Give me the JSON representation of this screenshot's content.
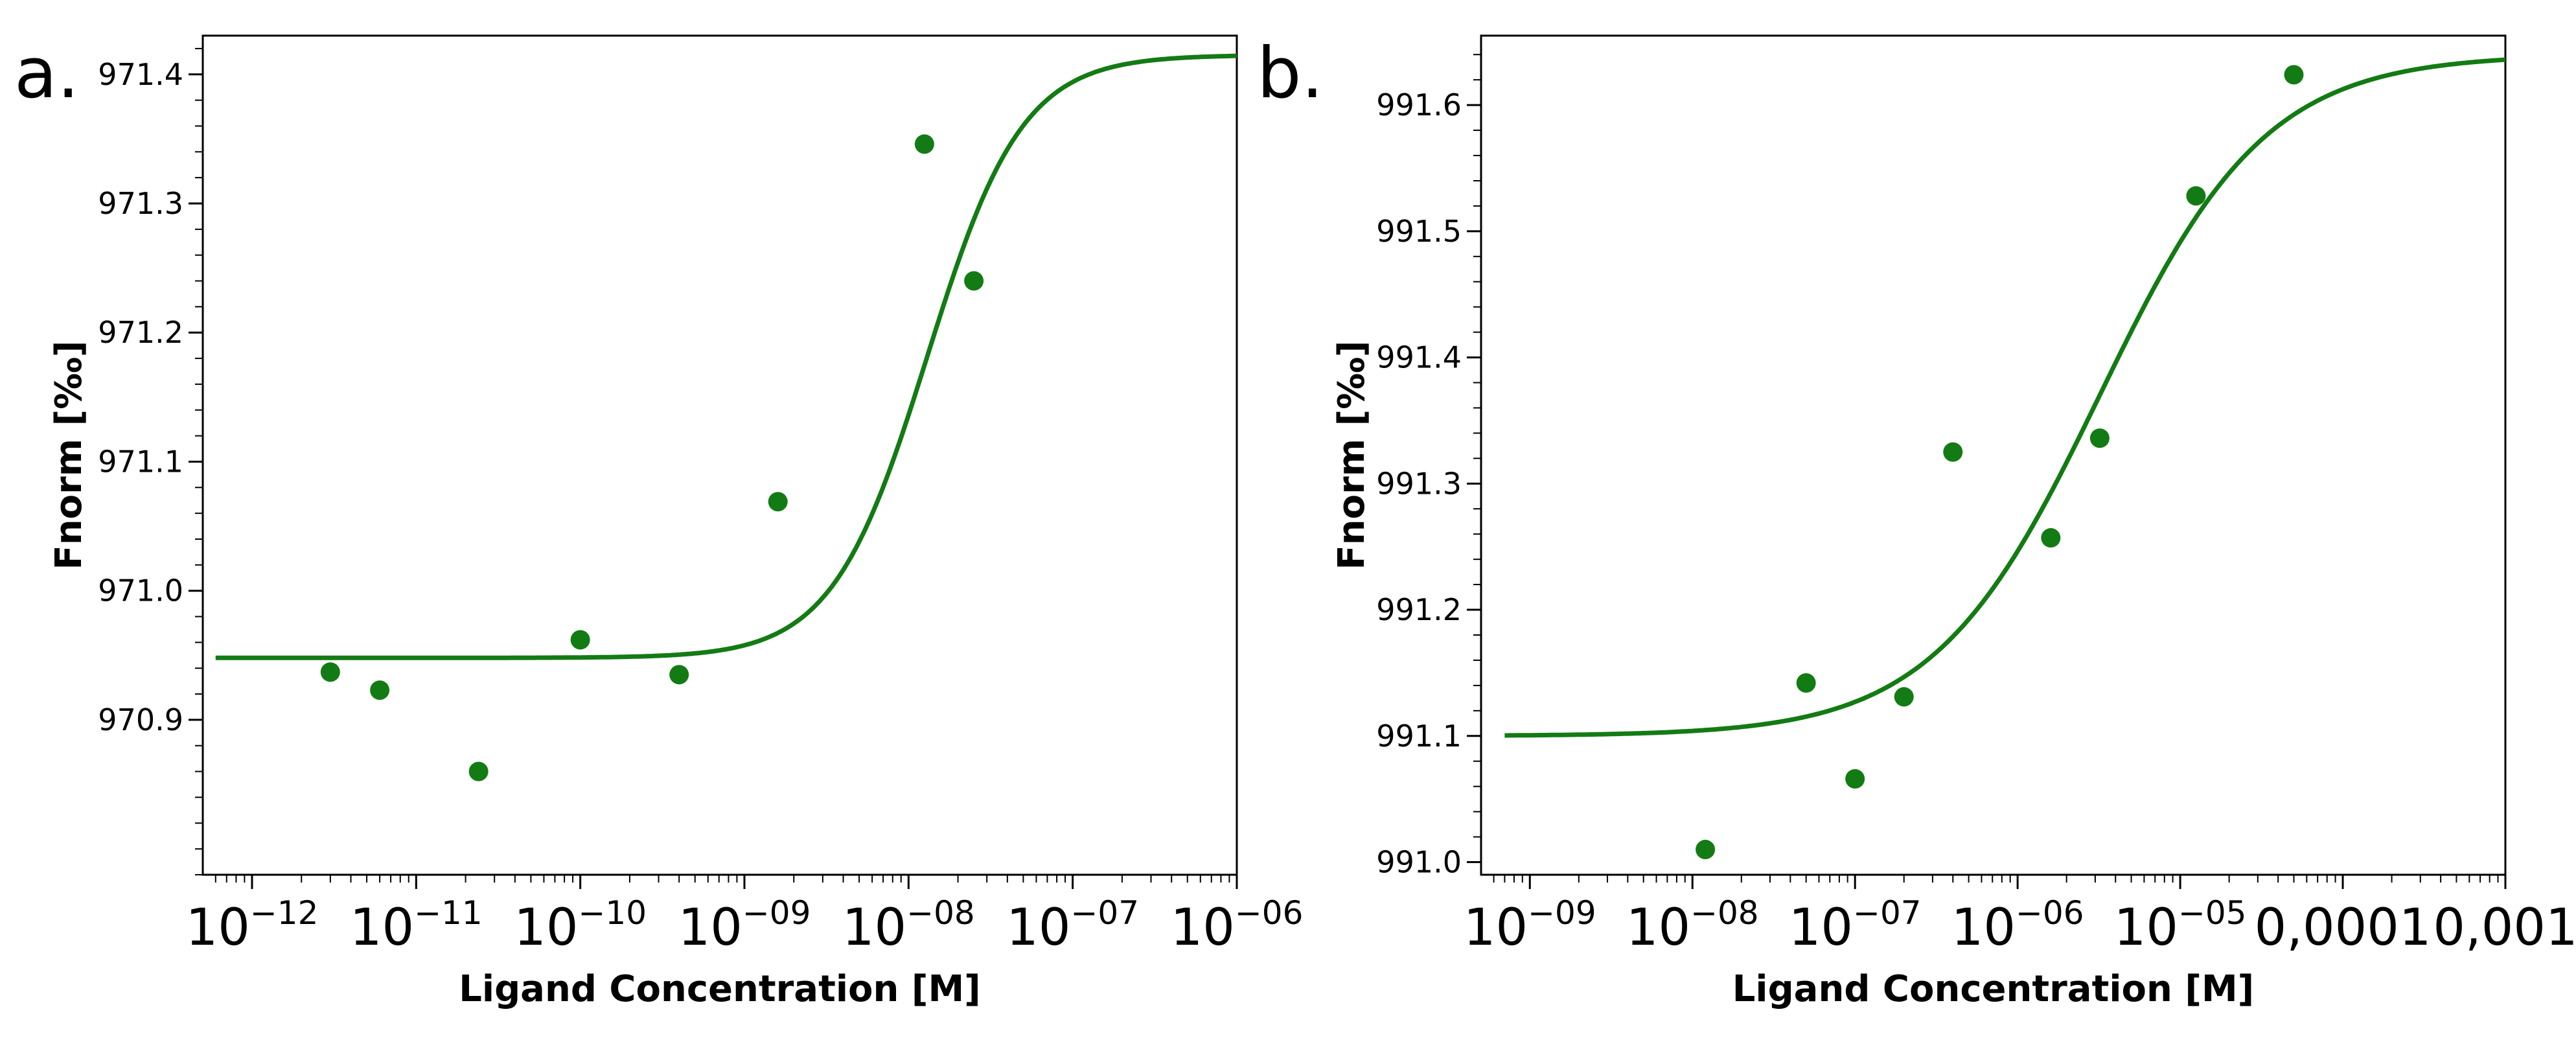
{
  "colors": {
    "series": "#137b13",
    "axis": "#000000",
    "background": "#ffffff"
  },
  "chart_data": [
    {
      "type": "scatter",
      "panel_label": "a.",
      "xlabel": "Ligand Concentration [M]",
      "ylabel": "Fnorm [‰]",
      "xscale": "log",
      "xlim_log10": [
        -12.3,
        -6
      ],
      "ylim": [
        970.78,
        971.43
      ],
      "yticks": [
        "970.9",
        "971.0",
        "971.1",
        "971.2",
        "971.3",
        "971.4"
      ],
      "ytick_values": [
        970.9,
        971.0,
        971.1,
        971.2,
        971.3,
        971.4
      ],
      "xticks": [
        {
          "base": "10",
          "exp": "−12",
          "log10": -12
        },
        {
          "base": "10",
          "exp": "−11",
          "log10": -11
        },
        {
          "base": "10",
          "exp": "−10",
          "log10": -10
        },
        {
          "base": "10",
          "exp": "−09",
          "log10": -9
        },
        {
          "base": "10",
          "exp": "−08",
          "log10": -8
        },
        {
          "base": "10",
          "exp": "−07",
          "log10": -7
        },
        {
          "base": "10",
          "exp": "−06",
          "log10": -6
        }
      ],
      "points": [
        {
          "x": 3e-12,
          "y": 970.937
        },
        {
          "x": 6e-12,
          "y": 970.923
        },
        {
          "x": 2.4e-11,
          "y": 970.86
        },
        {
          "x": 1e-10,
          "y": 970.962
        },
        {
          "x": 4e-10,
          "y": 970.935
        },
        {
          "x": 1.6e-09,
          "y": 971.069
        },
        {
          "x": 1.25e-08,
          "y": 971.346
        },
        {
          "x": 2.5e-08,
          "y": 971.24
        }
      ],
      "fit": {
        "bottom": 970.948,
        "top": 971.415,
        "ec50": 1.3e-08,
        "hill": 1.5,
        "x_start": 6e-13,
        "x_end": 1e-06
      }
    },
    {
      "type": "scatter",
      "panel_label": "b.",
      "xlabel": "Ligand Concentration [M]",
      "ylabel": "Fnorm [‰]",
      "xscale": "log",
      "xlim_log10": [
        -9.3,
        -3
      ],
      "ylim": [
        990.99,
        991.655
      ],
      "yticks": [
        "991.0",
        "991.1",
        "991.2",
        "991.3",
        "991.4",
        "991.5",
        "991.6"
      ],
      "ytick_values": [
        991.0,
        991.1,
        991.2,
        991.3,
        991.4,
        991.5,
        991.6
      ],
      "xticks": [
        {
          "base": "10",
          "exp": "−09",
          "log10": -9
        },
        {
          "base": "10",
          "exp": "−08",
          "log10": -8
        },
        {
          "base": "10",
          "exp": "−07",
          "log10": -7
        },
        {
          "base": "10",
          "exp": "−06",
          "log10": -6
        },
        {
          "base": "10",
          "exp": "−05",
          "log10": -5
        },
        {
          "base": "0,0001",
          "exp": "",
          "log10": -4
        },
        {
          "base": "0,001",
          "exp": "",
          "log10": -3
        }
      ],
      "points": [
        {
          "x": 1.2e-08,
          "y": 991.01
        },
        {
          "x": 5e-08,
          "y": 991.142
        },
        {
          "x": 1e-07,
          "y": 991.066
        },
        {
          "x": 2e-07,
          "y": 991.131
        },
        {
          "x": 4e-07,
          "y": 991.325
        },
        {
          "x": 1.6e-06,
          "y": 991.257
        },
        {
          "x": 3.2e-06,
          "y": 991.336
        },
        {
          "x": 1.25e-05,
          "y": 991.528
        },
        {
          "x": 5e-05,
          "y": 991.624
        }
      ],
      "fit": {
        "bottom": 991.1,
        "top": 991.64,
        "ec50": 3.2e-06,
        "hill": 0.85,
        "x_start": 7e-10,
        "x_end": 0.001
      }
    }
  ]
}
